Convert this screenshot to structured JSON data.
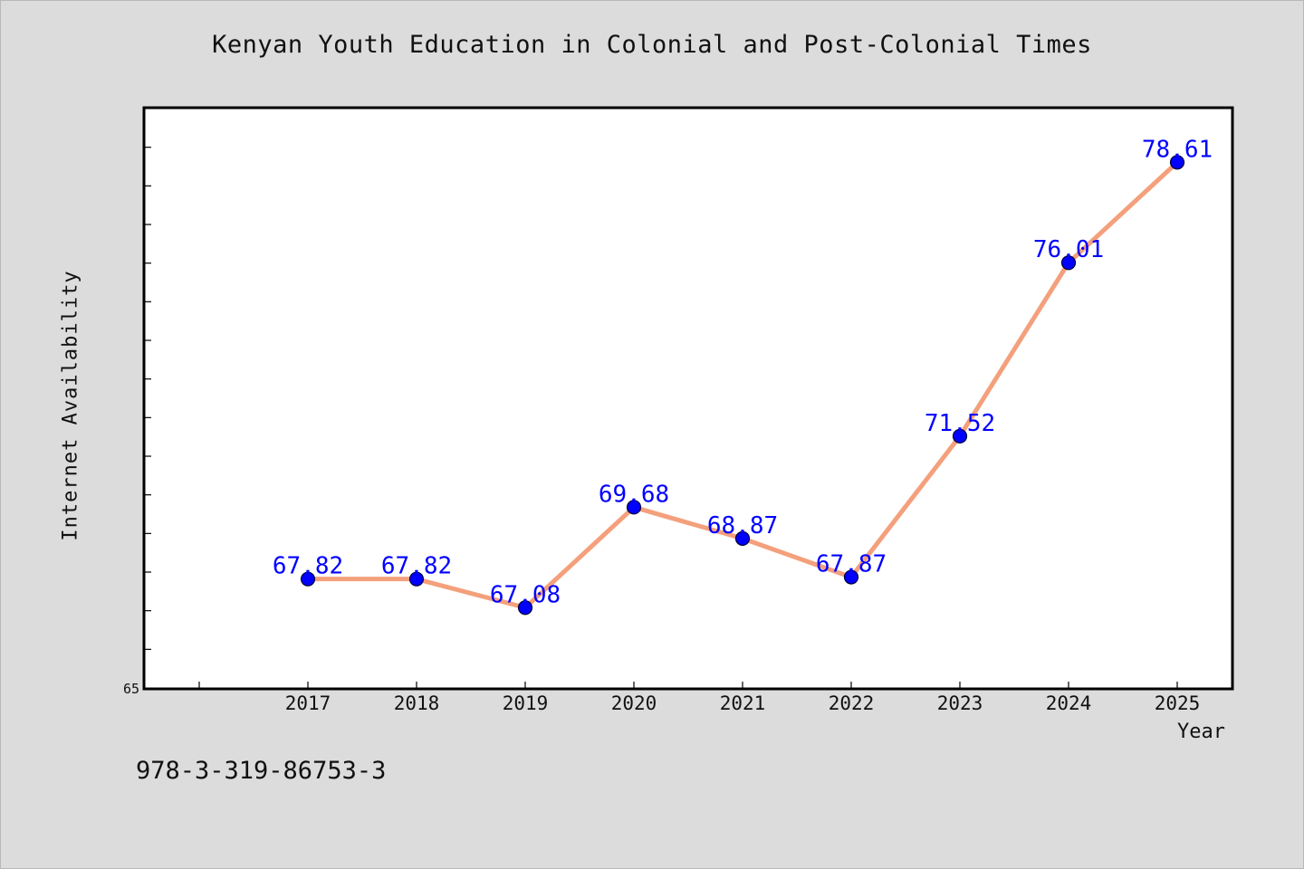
{
  "chart_data": {
    "type": "line",
    "title": "Kenyan Youth Education in Colonial and Post-Colonial Times",
    "xlabel": "Year",
    "ylabel": "Internet Availability",
    "categories": [
      "2017",
      "2018",
      "2019",
      "2020",
      "2021",
      "2022",
      "2023",
      "2024",
      "2025"
    ],
    "series": [
      {
        "values": [
          67.82,
          67.82,
          67.08,
          69.68,
          68.87,
          67.87,
          71.52,
          76.01,
          78.61
        ],
        "labels": [
          "67.82",
          "67.82",
          "67.08",
          "69.68",
          "68.87",
          "67.87",
          "71.52",
          "76.01",
          "78.61"
        ]
      }
    ],
    "ylim": [
      65,
      80
    ],
    "y_tick_labels": [
      "65"
    ],
    "grid": false,
    "legend": "none",
    "colors": {
      "line": "#f4a07c",
      "marker": "#0000ff",
      "marker_edge": "#000033",
      "data_label": "#0000ff",
      "background": "#dcdcdc",
      "plot_background": "#ffffff"
    }
  },
  "annotation": {
    "isbn": "978-3-319-86753-3"
  }
}
